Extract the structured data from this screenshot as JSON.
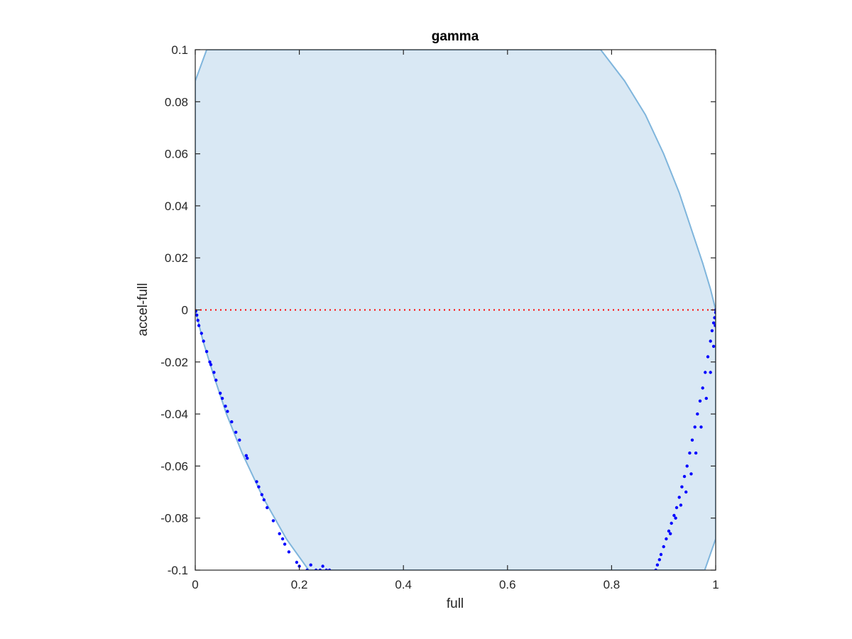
{
  "chart_data": {
    "type": "scatter",
    "title": "gamma",
    "xlabel": "full",
    "ylabel": "accel-full",
    "xlim": [
      0,
      1
    ],
    "ylim": [
      -0.1,
      0.1
    ],
    "grid": false,
    "box": true,
    "x_ticks": [
      0,
      0.2,
      0.4,
      0.6,
      0.8,
      1
    ],
    "x_tick_labels": [
      "0",
      "0.2",
      "0.4",
      "0.6",
      "0.8",
      "1"
    ],
    "y_ticks": [
      -0.1,
      -0.08,
      -0.06,
      -0.04,
      -0.02,
      0,
      0.02,
      0.04,
      0.06,
      0.08,
      0.1
    ],
    "y_tick_labels": [
      "-0.1",
      "-0.08",
      "-0.06",
      "-0.04",
      "-0.02",
      "0",
      "0.02",
      "0.04",
      "0.06",
      "0.08",
      "0.1"
    ],
    "shaded_region": {
      "fill_color": "#d9e8f4",
      "edge_color": "#7fb5dc",
      "polygon": [
        [
          0,
          0.088
        ],
        [
          0.022,
          0.1
        ],
        [
          0.779,
          0.1
        ],
        [
          0.825,
          0.088
        ],
        [
          0.865,
          0.075
        ],
        [
          0.9,
          0.06
        ],
        [
          0.93,
          0.045
        ],
        [
          0.955,
          0.03
        ],
        [
          0.975,
          0.018
        ],
        [
          0.99,
          0.008
        ],
        [
          1,
          0
        ],
        [
          1,
          -0.088
        ],
        [
          0.979,
          -0.1
        ],
        [
          0.218,
          -0.1
        ],
        [
          0.175,
          -0.088
        ],
        [
          0.13,
          -0.072
        ],
        [
          0.09,
          -0.055
        ],
        [
          0.06,
          -0.04
        ],
        [
          0.035,
          -0.025
        ],
        [
          0.015,
          -0.012
        ],
        [
          0,
          0
        ]
      ]
    },
    "reference_line": {
      "y": 0,
      "style": "dotted",
      "color": "#ff0000"
    },
    "series": [
      {
        "color": "#0000ff",
        "marker": "dot",
        "points": [
          [
            0.001,
            -0.0005
          ],
          [
            0.003,
            -0.002
          ],
          [
            0.005,
            -0.004
          ],
          [
            0.007,
            -0.006
          ],
          [
            0.012,
            -0.009
          ],
          [
            0.016,
            -0.012
          ],
          [
            0.022,
            -0.016
          ],
          [
            0.028,
            -0.02
          ],
          [
            0.03,
            -0.021
          ],
          [
            0.036,
            -0.024
          ],
          [
            0.04,
            -0.027
          ],
          [
            0.048,
            -0.032
          ],
          [
            0.052,
            -0.034
          ],
          [
            0.058,
            -0.037
          ],
          [
            0.062,
            -0.039
          ],
          [
            0.07,
            -0.043
          ],
          [
            0.078,
            -0.047
          ],
          [
            0.085,
            -0.05
          ],
          [
            0.098,
            -0.056
          ],
          [
            0.1,
            -0.057
          ],
          [
            0.118,
            -0.066
          ],
          [
            0.122,
            -0.068
          ],
          [
            0.128,
            -0.071
          ],
          [
            0.132,
            -0.073
          ],
          [
            0.138,
            -0.076
          ],
          [
            0.15,
            -0.081
          ],
          [
            0.162,
            -0.086
          ],
          [
            0.168,
            -0.088
          ],
          [
            0.172,
            -0.09
          ],
          [
            0.18,
            -0.093
          ],
          [
            0.195,
            -0.097
          ],
          [
            0.2,
            -0.0985
          ],
          [
            0.215,
            -0.1
          ],
          [
            0.222,
            -0.098
          ],
          [
            0.232,
            -0.1
          ],
          [
            0.24,
            -0.1
          ],
          [
            0.245,
            -0.0985
          ],
          [
            0.252,
            -0.1
          ],
          [
            0.258,
            -0.1
          ],
          [
            0.885,
            -0.1
          ],
          [
            0.888,
            -0.098
          ],
          [
            0.892,
            -0.096
          ],
          [
            0.895,
            -0.094
          ],
          [
            0.9,
            -0.091
          ],
          [
            0.905,
            -0.088
          ],
          [
            0.91,
            -0.085
          ],
          [
            0.915,
            -0.082
          ],
          [
            0.92,
            -0.079
          ],
          [
            0.925,
            -0.076
          ],
          [
            0.93,
            -0.072
          ],
          [
            0.935,
            -0.068
          ],
          [
            0.94,
            -0.064
          ],
          [
            0.945,
            -0.06
          ],
          [
            0.95,
            -0.055
          ],
          [
            0.955,
            -0.05
          ],
          [
            0.96,
            -0.045
          ],
          [
            0.965,
            -0.04
          ],
          [
            0.97,
            -0.035
          ],
          [
            0.975,
            -0.03
          ],
          [
            0.98,
            -0.024
          ],
          [
            0.985,
            -0.018
          ],
          [
            0.99,
            -0.012
          ],
          [
            0.993,
            -0.008
          ],
          [
            0.996,
            -0.005
          ],
          [
            0.998,
            -0.003
          ],
          [
            1.0,
            -0.001
          ],
          [
            1.0,
            0.0
          ],
          [
            0.913,
            -0.086
          ],
          [
            0.923,
            -0.08
          ],
          [
            0.933,
            -0.075
          ],
          [
            0.943,
            -0.07
          ],
          [
            0.953,
            -0.063
          ],
          [
            0.962,
            -0.055
          ],
          [
            0.972,
            -0.045
          ],
          [
            0.982,
            -0.034
          ],
          [
            0.99,
            -0.024
          ],
          [
            0.996,
            -0.014
          ],
          [
            0.999,
            -0.006
          ]
        ]
      }
    ]
  }
}
